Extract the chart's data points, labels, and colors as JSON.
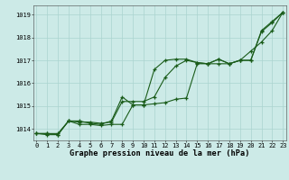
{
  "xlabel": "Graphe pression niveau de la mer (hPa)",
  "x_ticks": [
    0,
    1,
    2,
    3,
    4,
    5,
    6,
    7,
    8,
    9,
    10,
    11,
    12,
    13,
    14,
    15,
    16,
    17,
    18,
    19,
    20,
    21,
    22,
    23
  ],
  "ylim": [
    1013.5,
    1019.4
  ],
  "yticks": [
    1014,
    1015,
    1016,
    1017,
    1018,
    1019
  ],
  "xlim": [
    -0.3,
    23.3
  ],
  "bg_color": "#cceae7",
  "line_color": "#1a5c1a",
  "grid_color": "#aad4cf",
  "series1": [
    1013.8,
    1013.8,
    1013.8,
    1014.35,
    1014.35,
    1014.25,
    1014.2,
    1014.35,
    1015.4,
    1015.05,
    1015.05,
    1016.6,
    1017.0,
    1017.05,
    1017.05,
    1016.9,
    1016.85,
    1017.05,
    1016.85,
    1017.0,
    1017.0,
    1018.3,
    1018.7,
    1019.1
  ],
  "series2": [
    1013.8,
    1013.8,
    1013.75,
    1014.35,
    1014.2,
    1014.2,
    1014.15,
    1014.2,
    1014.2,
    1015.05,
    1015.05,
    1015.1,
    1015.15,
    1015.3,
    1015.35,
    1016.85,
    1016.85,
    1016.85,
    1016.85,
    1017.0,
    1017.4,
    1017.8,
    1018.3,
    1019.1
  ],
  "series3": [
    1013.8,
    1013.75,
    1013.75,
    1014.35,
    1014.3,
    1014.3,
    1014.25,
    1014.3,
    1015.2,
    1015.2,
    1015.2,
    1015.4,
    1016.25,
    1016.75,
    1017.0,
    1016.9,
    1016.85,
    1017.05,
    1016.85,
    1017.0,
    1017.0,
    1018.25,
    1018.65,
    1019.1
  ],
  "tick_fontsize": 5.0,
  "label_fontsize": 6.2,
  "linewidth": 0.8,
  "markersize": 3.0
}
